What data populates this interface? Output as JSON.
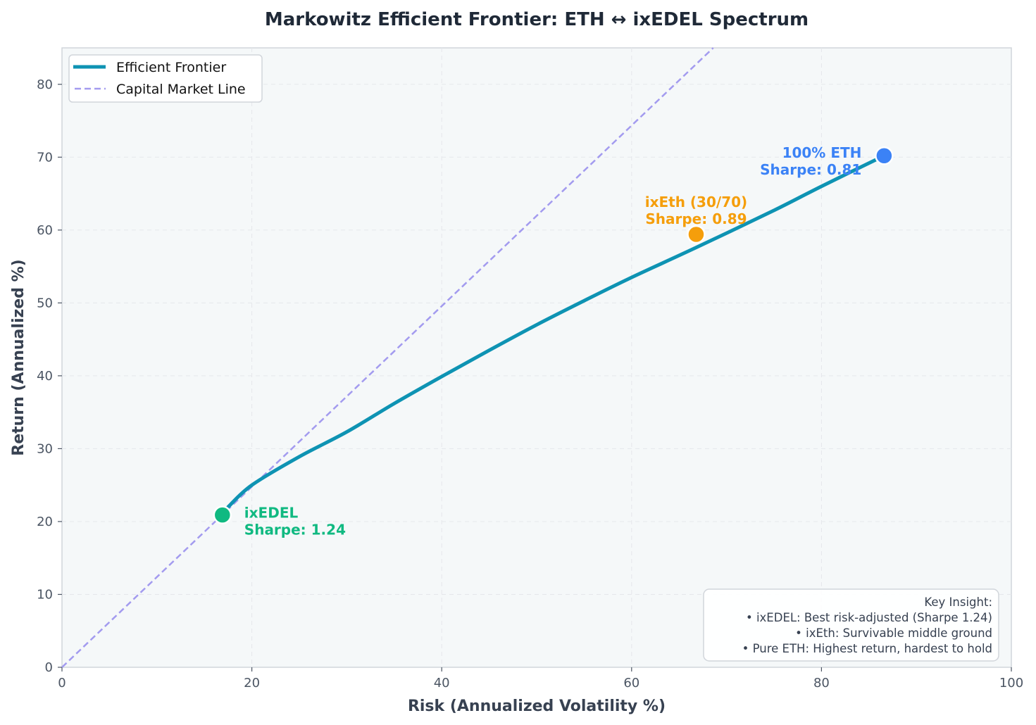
{
  "chart_data": {
    "type": "line",
    "title": "Markowitz Efficient Frontier: ETH ↔ ixEDEL Spectrum",
    "xlabel": "Risk (Annualized Volatility %)",
    "ylabel": "Return (Annualized %)",
    "xlim": [
      0,
      100
    ],
    "ylim": [
      0,
      85
    ],
    "xticks": [
      0,
      20,
      40,
      60,
      80,
      100
    ],
    "yticks": [
      0,
      10,
      20,
      30,
      40,
      50,
      60,
      70,
      80
    ],
    "grid": true,
    "legend_position": "top-left",
    "series": [
      {
        "name": "Efficient Frontier",
        "color": "#0e93b3",
        "style": "solid",
        "x": [
          17.5,
          20,
          25,
          30,
          35,
          40,
          45,
          50,
          55,
          60,
          66.8,
          75,
          80,
          86.6
        ],
        "y": [
          22,
          25,
          28.9,
          32.3,
          36.2,
          39.9,
          43.5,
          47,
          50.3,
          53.5,
          57.6,
          62.7,
          66,
          70.2
        ]
      },
      {
        "name": "Capital Market Line",
        "color": "#a39bef",
        "style": "dashed",
        "x": [
          0,
          68.6
        ],
        "y": [
          0,
          85
        ]
      }
    ],
    "points": [
      {
        "name": "ixEDEL",
        "x": 16.9,
        "y": 20.9,
        "color": "#10b981",
        "label": "ixEDEL",
        "sharpe_label": "Sharpe: 1.24"
      },
      {
        "name": "ixEth",
        "x": 66.8,
        "y": 59.4,
        "color": "#f59e0b",
        "label": "ixEth (30/70)",
        "sharpe_label": "Sharpe: 0.89"
      },
      {
        "name": "ETH",
        "x": 86.6,
        "y": 70.2,
        "color": "#3b82f6",
        "label": "100% ETH",
        "sharpe_label": "Sharpe: 0.81"
      }
    ],
    "insight": {
      "title": "Key Insight:",
      "lines": [
        "• ixEDEL: Best risk-adjusted (Sharpe 1.24)",
        "• ixEth: Survivable middle ground",
        "• Pure ETH: Highest return, hardest to hold"
      ]
    }
  }
}
